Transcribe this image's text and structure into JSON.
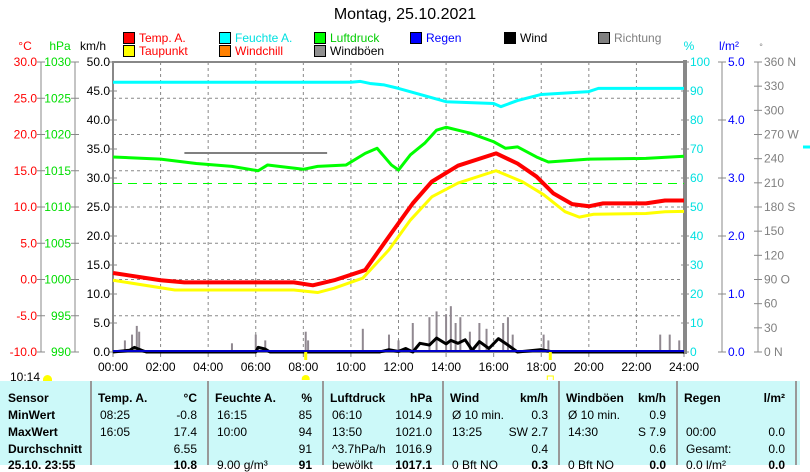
{
  "title": "Montag, 25.10.2021",
  "legend": [
    {
      "label": "Temp. A.",
      "color": "#ff0000",
      "text_color": "#ff0000"
    },
    {
      "label": "Feuchte A.",
      "color": "#00ffff",
      "text_color": "#00e0e0"
    },
    {
      "label": "Luftdruck",
      "color": "#00ff00",
      "text_color": "#00cc00"
    },
    {
      "label": "Regen",
      "color": "#0000ff",
      "text_color": "#0000ff"
    },
    {
      "label": "Wind",
      "color": "#000000",
      "text_color": "#000000"
    },
    {
      "label": "Richtung",
      "color": "#808080",
      "text_color": "#808080"
    },
    {
      "label": "Taupunkt",
      "color": "#ffff00",
      "text_color": "#ff0000"
    },
    {
      "label": "Windchill",
      "color": "#ff8000",
      "text_color": "#ff0000"
    },
    {
      "label": "Windböen",
      "color": "#909090",
      "text_color": "#000000"
    }
  ],
  "sun": {
    "day_length": "10:14",
    "sunrise_hour": 8.1,
    "sunset_hour": 18.38
  },
  "chart_data": {
    "type": "line",
    "title": "Montag, 25.10.2021",
    "x_ticks": [
      "00:00",
      "02:00",
      "04:00",
      "06:00",
      "08:00",
      "10:00",
      "12:00",
      "14:00",
      "16:00",
      "18:00",
      "20:00",
      "22:00",
      "24:00"
    ],
    "xlim": [
      0,
      24
    ],
    "axes": {
      "temp": {
        "label": "°C",
        "ylim": [
          -10,
          30
        ],
        "ticks": [
          "30.0",
          "25.0",
          "20.0",
          "15.0",
          "10.0",
          "5.0",
          "0.0",
          "-5.0",
          "-10.0"
        ],
        "color": "#ff0000"
      },
      "pressure": {
        "label": "hPa",
        "ylim": [
          990,
          1030
        ],
        "ticks": [
          "1030",
          "1025",
          "1020",
          "1015",
          "1010",
          "1005",
          "1000",
          "995",
          "990"
        ],
        "color": "#00dd00"
      },
      "wind": {
        "label": "km/h",
        "ylim": [
          0,
          50
        ],
        "ticks": [
          "50.0",
          "45.0",
          "40.0",
          "35.0",
          "30.0",
          "25.0",
          "20.0",
          "15.0",
          "10.0",
          "5.0",
          "0.0"
        ],
        "color": "#000000"
      },
      "humidity": {
        "label": "%",
        "ylim": [
          0,
          100
        ],
        "ticks": [
          "100",
          "90",
          "80",
          "70",
          "60",
          "50",
          "40",
          "30",
          "20",
          "10",
          "0"
        ],
        "color": "#00e0e0"
      },
      "rain": {
        "label": "l/m²",
        "ylim": [
          0,
          5
        ],
        "ticks": [
          "5.0",
          "4.0",
          "3.0",
          "2.0",
          "1.0",
          "0.0"
        ],
        "color": "#0000ff"
      },
      "direction": {
        "label": "°",
        "ylim": [
          0,
          360
        ],
        "ticks": [
          "360 N",
          "330",
          "300",
          "270 W",
          "240",
          "210",
          "180 S",
          "150",
          "120",
          "90  O",
          "60",
          "30",
          "0   N"
        ],
        "color": "#808080"
      }
    },
    "series": [
      {
        "name": "Feuchte A.",
        "axis": "humidity",
        "color": "#00ffff",
        "x": [
          0,
          10,
          10.4,
          10.8,
          11.4,
          12,
          13,
          14,
          16,
          16.3,
          17,
          18,
          20,
          20.4,
          24
        ],
        "y": [
          93,
          93,
          93.3,
          92.6,
          92.1,
          90.9,
          88.6,
          86.3,
          85.7,
          84.6,
          86.7,
          88.8,
          89.8,
          90.9,
          90.9
        ]
      },
      {
        "name": "Luftdruck",
        "axis": "pressure",
        "color": "#00ff00",
        "x": [
          0,
          2,
          3.5,
          5,
          6.1,
          6.5,
          8,
          8.6,
          9.8,
          10.6,
          11.1,
          11.7,
          12,
          12.5,
          13.1,
          13.6,
          14,
          15,
          16,
          16.5,
          17,
          17.8,
          18.3,
          20,
          22.4,
          24
        ],
        "y": [
          1016.9,
          1016.6,
          1016.0,
          1015.6,
          1015.0,
          1015.8,
          1015.2,
          1015.6,
          1015.8,
          1017.4,
          1018.1,
          1015.8,
          1015.1,
          1017.2,
          1018.8,
          1020.6,
          1021.0,
          1020.2,
          1019.0,
          1018.1,
          1018.3,
          1016.9,
          1016.2,
          1016.6,
          1016.7,
          1017.0
        ]
      },
      {
        "name": "Temp. A.",
        "axis": "temp",
        "color": "#ff0000",
        "x": [
          0,
          2,
          3,
          7.6,
          8.4,
          9.3,
          10.6,
          11.7,
          12.6,
          13.4,
          14.5,
          16.1,
          17,
          17.8,
          18.5,
          19.3,
          20,
          20.6,
          22.4,
          23.2,
          24
        ],
        "y": [
          0.9,
          -0.1,
          -0.4,
          -0.4,
          -0.8,
          -0.1,
          1.3,
          6.4,
          10.5,
          13.5,
          15.7,
          17.4,
          16.0,
          14.2,
          11.9,
          10.4,
          10.1,
          10.5,
          10.5,
          10.9,
          10.9
        ]
      },
      {
        "name": "Taupunkt",
        "axis": "temp",
        "color": "#ffff00",
        "x": [
          0,
          2.6,
          7.6,
          8.6,
          9.3,
          10.5,
          11.6,
          12.5,
          13.4,
          14.5,
          16.1,
          17.2,
          18.1,
          19,
          19.6,
          20.2,
          22.4,
          23.2,
          24
        ],
        "y": [
          -0.1,
          -1.45,
          -1.45,
          -1.8,
          -1.2,
          0.2,
          4.1,
          8.2,
          11.4,
          13.3,
          15.0,
          13.5,
          11.7,
          9.35,
          8.6,
          9.0,
          9.1,
          9.35,
          9.4
        ]
      },
      {
        "name": "Wind",
        "axis": "wind",
        "color": "#000000",
        "x": [
          0,
          0.7,
          0.9,
          1.2,
          1.4,
          6,
          6.1,
          6.4,
          6.6,
          11.2,
          11.6,
          12,
          12.3,
          12.6,
          12.9,
          13.3,
          13.6,
          14,
          14.2,
          14.5,
          14.8,
          15.1,
          15.4,
          15.8,
          16.2,
          16.6,
          17,
          18,
          18.5,
          24
        ],
        "y": [
          0,
          0.3,
          0.8,
          0.3,
          0,
          0,
          0.8,
          0.5,
          0,
          0,
          0.4,
          0.1,
          0.6,
          0,
          1.5,
          1.2,
          2.4,
          1.4,
          2.0,
          1.5,
          2.1,
          0.3,
          1.8,
          0.6,
          2.3,
          1.2,
          0,
          0.4,
          0,
          0
        ]
      }
    ],
    "gusts": {
      "name": "Windböen",
      "axis": "wind",
      "color": "#908890",
      "x": [
        0.5,
        0.8,
        1,
        1.1,
        5,
        6,
        6.4,
        8.1,
        8.2,
        10.5,
        11.6,
        12,
        12.6,
        13.3,
        13.6,
        14,
        14.2,
        14.4,
        14.6,
        15,
        15.4,
        15.7,
        16.4,
        16.6,
        16.8,
        18.1,
        18.3,
        23,
        23.4,
        23.8
      ],
      "y": [
        2,
        3,
        4.5,
        3.5,
        1.5,
        3,
        2,
        3.5,
        2,
        4,
        3,
        2,
        5,
        6,
        7,
        6.5,
        7.9,
        5,
        6,
        3.5,
        5,
        4,
        5,
        6,
        3,
        3,
        2,
        3,
        3,
        2
      ]
    },
    "direction_segment": {
      "from_hour": 3,
      "to_hour": 9,
      "value": 247
    },
    "reference_pressure": 1013.25,
    "grid": true
  },
  "table": {
    "headers": [
      "Sensor",
      "Temp. A.",
      "°C",
      "Feuchte A.",
      "%",
      "Luftdruck",
      "hPa",
      "Wind",
      "km/h",
      "Windböen",
      "km/h",
      "Regen",
      "l/m²"
    ],
    "rows": [
      {
        "label": "MinWert",
        "cells": [
          "08:25",
          "-0.8",
          "16:15",
          "85",
          "06:10",
          "1014.9",
          "Ø 10 min.",
          "0.3",
          "Ø 10 min.",
          "0.9",
          "",
          ""
        ]
      },
      {
        "label": "MaxWert",
        "cells": [
          "16:05",
          "17.4",
          "10:00",
          "94",
          "13:50",
          "1021.0",
          "13:25",
          "SW 2.7",
          "14:30",
          "S 7.9",
          "00:00",
          "0.0"
        ]
      },
      {
        "label": "Durchschnitt",
        "cells": [
          "",
          "6.55",
          "",
          "91",
          "^3.7hPa/h",
          "1016.9",
          "",
          "0.4",
          "",
          "0.6",
          "Gesamt:",
          "0.0"
        ]
      },
      {
        "label": "25.10. 23:55",
        "cells": [
          "",
          "10.8",
          "9.00 g/m³",
          "91",
          "bewölkt",
          "1017.1",
          "0 Bft NO",
          "0.3",
          "0 Bft NO",
          "0.0",
          "0.0 l/m²",
          "0.0"
        ]
      }
    ]
  }
}
